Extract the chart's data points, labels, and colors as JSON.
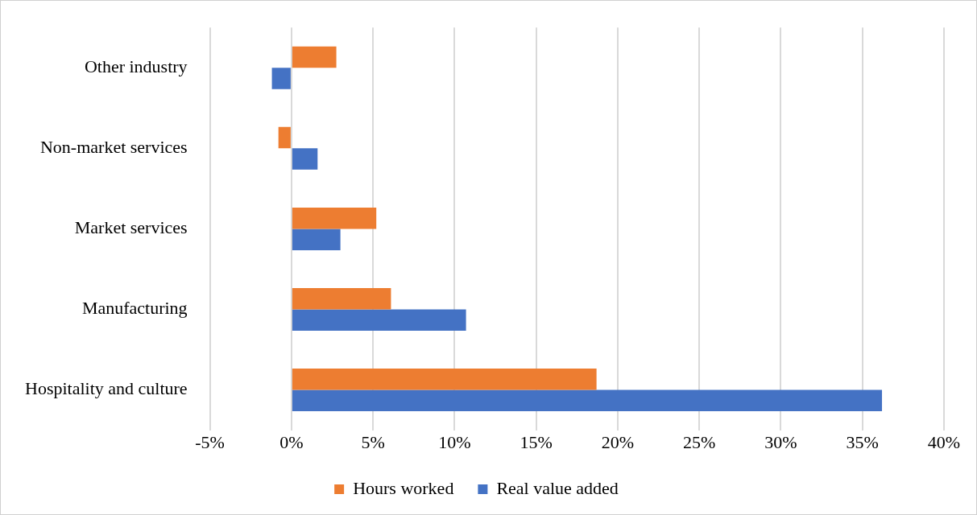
{
  "chart_data": {
    "type": "bar",
    "orientation": "horizontal",
    "categories": [
      "Other industry",
      "Non-market services",
      "Market services",
      "Manufacturing",
      "Hospitality and culture"
    ],
    "series": [
      {
        "name": "Hours worked",
        "color": "#ed7d31",
        "values": [
          2.75,
          -0.8,
          5.2,
          6.1,
          18.7
        ]
      },
      {
        "name": "Real value added",
        "color": "#4472c4",
        "values": [
          -1.2,
          1.6,
          3.0,
          10.7,
          36.2
        ]
      }
    ],
    "xlim": [
      -5,
      40
    ],
    "xticks": [
      {
        "value": -5,
        "label": "-5%"
      },
      {
        "value": 0,
        "label": "0%"
      },
      {
        "value": 5,
        "label": "5%"
      },
      {
        "value": 10,
        "label": "10%"
      },
      {
        "value": 15,
        "label": "15%"
      },
      {
        "value": 20,
        "label": "20%"
      },
      {
        "value": 25,
        "label": "25%"
      },
      {
        "value": 30,
        "label": "30%"
      },
      {
        "value": 35,
        "label": "35%"
      },
      {
        "value": 40,
        "label": "40%"
      }
    ],
    "grid": "x",
    "legend": "bottom"
  }
}
